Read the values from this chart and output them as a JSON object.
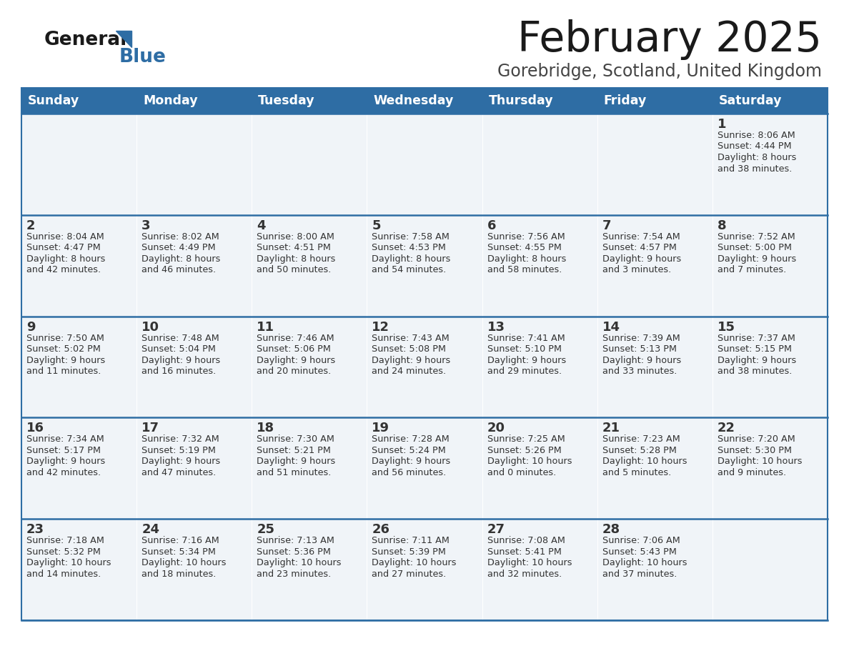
{
  "title": "February 2025",
  "subtitle": "Gorebridge, Scotland, United Kingdom",
  "days_of_week": [
    "Sunday",
    "Monday",
    "Tuesday",
    "Wednesday",
    "Thursday",
    "Friday",
    "Saturday"
  ],
  "header_bg": "#2E6DA4",
  "header_text": "#FFFFFF",
  "cell_bg": "#F0F4F8",
  "cell_bg_white": "#FFFFFF",
  "divider_color": "#2E6DA4",
  "text_color": "#333333",
  "title_color": "#1a1a1a",
  "subtitle_color": "#444444",
  "logo_general_color": "#1a1a1a",
  "logo_blue_color": "#2E6DA4",
  "calendar_data": [
    [
      {
        "day": null,
        "info": null
      },
      {
        "day": null,
        "info": null
      },
      {
        "day": null,
        "info": null
      },
      {
        "day": null,
        "info": null
      },
      {
        "day": null,
        "info": null
      },
      {
        "day": null,
        "info": null
      },
      {
        "day": 1,
        "info": "Sunrise: 8:06 AM\nSunset: 4:44 PM\nDaylight: 8 hours\nand 38 minutes."
      }
    ],
    [
      {
        "day": 2,
        "info": "Sunrise: 8:04 AM\nSunset: 4:47 PM\nDaylight: 8 hours\nand 42 minutes."
      },
      {
        "day": 3,
        "info": "Sunrise: 8:02 AM\nSunset: 4:49 PM\nDaylight: 8 hours\nand 46 minutes."
      },
      {
        "day": 4,
        "info": "Sunrise: 8:00 AM\nSunset: 4:51 PM\nDaylight: 8 hours\nand 50 minutes."
      },
      {
        "day": 5,
        "info": "Sunrise: 7:58 AM\nSunset: 4:53 PM\nDaylight: 8 hours\nand 54 minutes."
      },
      {
        "day": 6,
        "info": "Sunrise: 7:56 AM\nSunset: 4:55 PM\nDaylight: 8 hours\nand 58 minutes."
      },
      {
        "day": 7,
        "info": "Sunrise: 7:54 AM\nSunset: 4:57 PM\nDaylight: 9 hours\nand 3 minutes."
      },
      {
        "day": 8,
        "info": "Sunrise: 7:52 AM\nSunset: 5:00 PM\nDaylight: 9 hours\nand 7 minutes."
      }
    ],
    [
      {
        "day": 9,
        "info": "Sunrise: 7:50 AM\nSunset: 5:02 PM\nDaylight: 9 hours\nand 11 minutes."
      },
      {
        "day": 10,
        "info": "Sunrise: 7:48 AM\nSunset: 5:04 PM\nDaylight: 9 hours\nand 16 minutes."
      },
      {
        "day": 11,
        "info": "Sunrise: 7:46 AM\nSunset: 5:06 PM\nDaylight: 9 hours\nand 20 minutes."
      },
      {
        "day": 12,
        "info": "Sunrise: 7:43 AM\nSunset: 5:08 PM\nDaylight: 9 hours\nand 24 minutes."
      },
      {
        "day": 13,
        "info": "Sunrise: 7:41 AM\nSunset: 5:10 PM\nDaylight: 9 hours\nand 29 minutes."
      },
      {
        "day": 14,
        "info": "Sunrise: 7:39 AM\nSunset: 5:13 PM\nDaylight: 9 hours\nand 33 minutes."
      },
      {
        "day": 15,
        "info": "Sunrise: 7:37 AM\nSunset: 5:15 PM\nDaylight: 9 hours\nand 38 minutes."
      }
    ],
    [
      {
        "day": 16,
        "info": "Sunrise: 7:34 AM\nSunset: 5:17 PM\nDaylight: 9 hours\nand 42 minutes."
      },
      {
        "day": 17,
        "info": "Sunrise: 7:32 AM\nSunset: 5:19 PM\nDaylight: 9 hours\nand 47 minutes."
      },
      {
        "day": 18,
        "info": "Sunrise: 7:30 AM\nSunset: 5:21 PM\nDaylight: 9 hours\nand 51 minutes."
      },
      {
        "day": 19,
        "info": "Sunrise: 7:28 AM\nSunset: 5:24 PM\nDaylight: 9 hours\nand 56 minutes."
      },
      {
        "day": 20,
        "info": "Sunrise: 7:25 AM\nSunset: 5:26 PM\nDaylight: 10 hours\nand 0 minutes."
      },
      {
        "day": 21,
        "info": "Sunrise: 7:23 AM\nSunset: 5:28 PM\nDaylight: 10 hours\nand 5 minutes."
      },
      {
        "day": 22,
        "info": "Sunrise: 7:20 AM\nSunset: 5:30 PM\nDaylight: 10 hours\nand 9 minutes."
      }
    ],
    [
      {
        "day": 23,
        "info": "Sunrise: 7:18 AM\nSunset: 5:32 PM\nDaylight: 10 hours\nand 14 minutes."
      },
      {
        "day": 24,
        "info": "Sunrise: 7:16 AM\nSunset: 5:34 PM\nDaylight: 10 hours\nand 18 minutes."
      },
      {
        "day": 25,
        "info": "Sunrise: 7:13 AM\nSunset: 5:36 PM\nDaylight: 10 hours\nand 23 minutes."
      },
      {
        "day": 26,
        "info": "Sunrise: 7:11 AM\nSunset: 5:39 PM\nDaylight: 10 hours\nand 27 minutes."
      },
      {
        "day": 27,
        "info": "Sunrise: 7:08 AM\nSunset: 5:41 PM\nDaylight: 10 hours\nand 32 minutes."
      },
      {
        "day": 28,
        "info": "Sunrise: 7:06 AM\nSunset: 5:43 PM\nDaylight: 10 hours\nand 37 minutes."
      },
      {
        "day": null,
        "info": null
      }
    ]
  ]
}
